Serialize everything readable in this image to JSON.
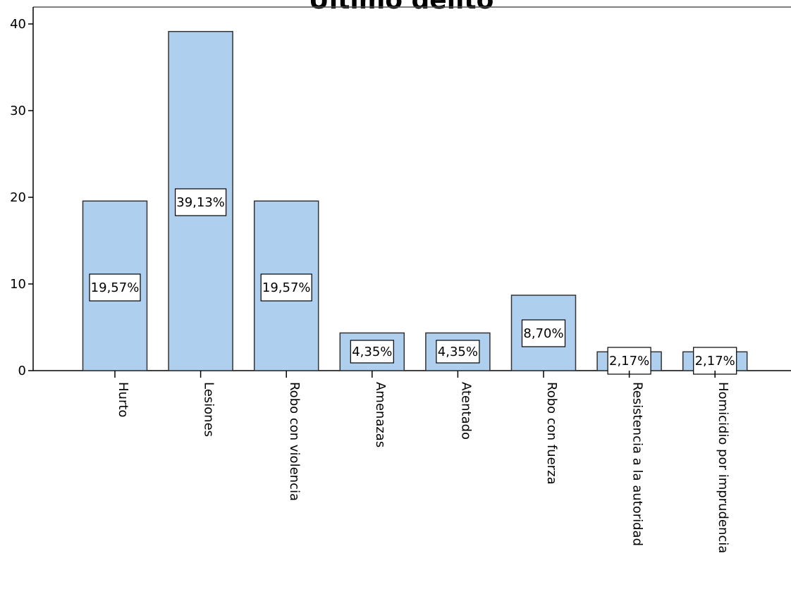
{
  "chart_data": {
    "type": "bar",
    "title": "Último delito",
    "xlabel": "",
    "ylabel": "",
    "ylim": [
      0,
      40
    ],
    "yticks": [
      0,
      10,
      20,
      30,
      40
    ],
    "categories": [
      "Hurto",
      "Lesiones",
      "Robo con violencia",
      "Amenazas",
      "Atentado",
      "Robo con fuerza",
      "Resistencia a la autoridad",
      "Homicidio por imprudencia"
    ],
    "values": [
      19.57,
      39.13,
      19.57,
      4.35,
      4.35,
      8.7,
      2.17,
      2.17
    ],
    "data_labels": [
      "19,57%",
      "39,13%",
      "19,57%",
      "4,35%",
      "4,35%",
      "8,70%",
      "2,17%",
      "2,17%"
    ],
    "grid": false,
    "legend": "none",
    "bar_color": "#aecfee",
    "bar_edge_color": "#333333"
  }
}
